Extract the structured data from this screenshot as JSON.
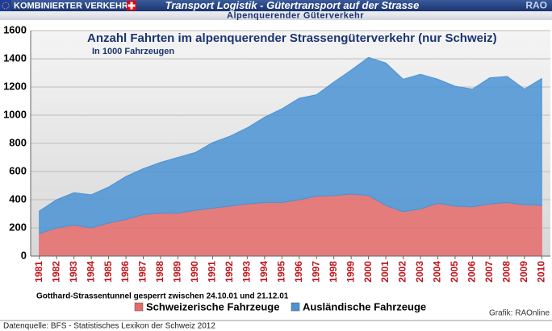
{
  "header": {
    "badge": "KOMBINIERTER VERKEHR",
    "title": "Transport Logistik - Gütertransport auf der Strasse",
    "brand": "RAO",
    "subtitle": "Alpenquerender Güterverkehr"
  },
  "chart_data": {
    "type": "stacked-area",
    "title": "Anzahl Fahrten im alpenquerender Strassengüterverkehr (nur Schweiz)",
    "subtitle": "In 1000 Fahrzeugen",
    "annotation": "Gotthard-Strassentunnel gesperrt zwischen 24.10.01 und 21.12.01",
    "credit": "Grafik: RAOnline",
    "categories": [
      "1981",
      "1982",
      "1983",
      "1984",
      "1985",
      "1986",
      "1987",
      "1988",
      "1989",
      "1990",
      "1991",
      "1992",
      "1993",
      "1994",
      "1995",
      "1996",
      "1997",
      "1998",
      "1999",
      "2000",
      "2001",
      "2002",
      "2003",
      "2004",
      "2005",
      "2006",
      "2007",
      "2008",
      "2009",
      "2010"
    ],
    "series": [
      {
        "name": "Schweizerische Fahrzeuge",
        "color": "#e56b6b",
        "values": [
          160,
          200,
          220,
          200,
          235,
          260,
          295,
          305,
          305,
          325,
          340,
          355,
          370,
          380,
          380,
          400,
          425,
          430,
          440,
          430,
          360,
          315,
          335,
          375,
          355,
          350,
          370,
          380,
          365,
          360
        ]
      },
      {
        "name": "Ausländische Fahrzeuge",
        "color": "#4b93d3",
        "values": [
          160,
          200,
          230,
          235,
          255,
          305,
          325,
          360,
          395,
          410,
          465,
          495,
          540,
          605,
          665,
          720,
          720,
          805,
          880,
          980,
          1010,
          940,
          955,
          880,
          850,
          835,
          895,
          895,
          820,
          900
        ]
      }
    ],
    "ylim": [
      0,
      1600
    ],
    "yticks": [
      0,
      200,
      400,
      600,
      800,
      1000,
      1200,
      1400,
      1600
    ],
    "grid": true
  },
  "footer": {
    "source": "Datenquelle: BFS - Statistisches Lexikon der Schweiz 2012"
  }
}
